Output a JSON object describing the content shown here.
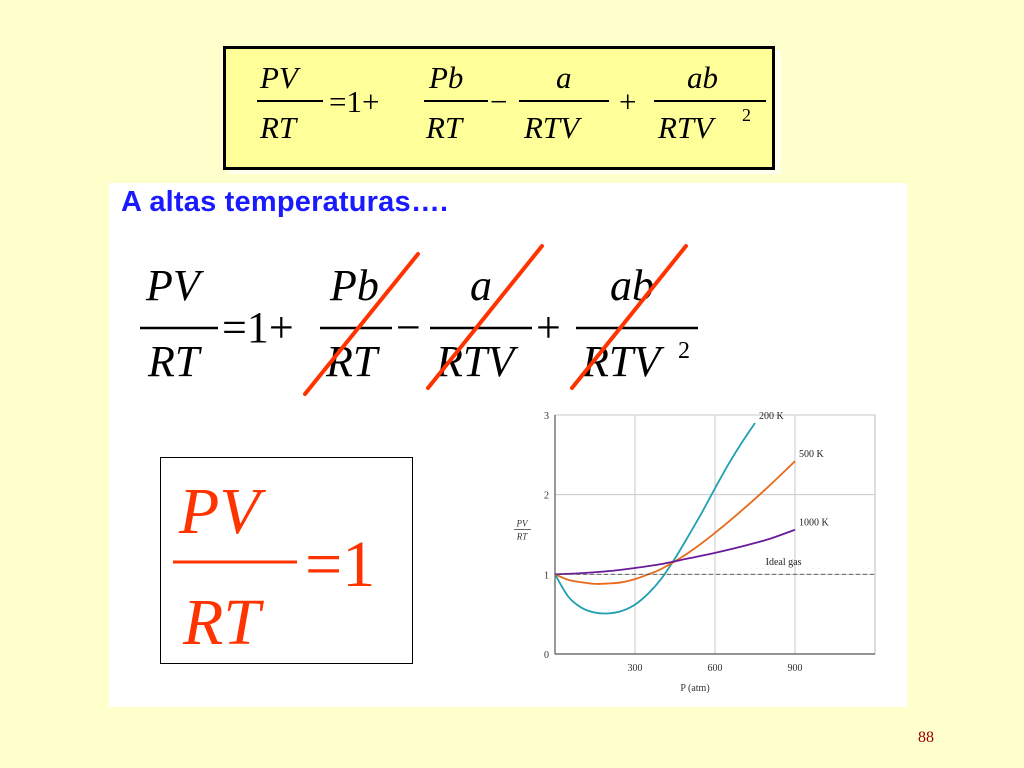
{
  "slide": {
    "heading": "A altas temperaturas….",
    "page_number": "88",
    "accent_color": "#ff3300",
    "heading_color": "#1a1aff"
  },
  "equation": {
    "lhs_num": "PV",
    "lhs_den": "RT",
    "equals_one": "=1+",
    "t1_num": "Pb",
    "t1_den": "RT",
    "minus": "−",
    "t2_num": "a",
    "t2_den": "RTV",
    "plus": "+",
    "t3_num": "ab",
    "t3_den": "RTV",
    "t3_exp": "2"
  },
  "result": {
    "num": "PV",
    "den": "RT",
    "rhs": "=1"
  },
  "chart_data": {
    "type": "line",
    "xlabel": "P (atm)",
    "ylabel_num": "PV",
    "ylabel_den": "RT",
    "xlim": [
      0,
      1200
    ],
    "ylim": [
      0,
      3
    ],
    "x_ticks": [
      "300",
      "600",
      "900"
    ],
    "x_tick_values": [
      300,
      600,
      900
    ],
    "y_ticks": [
      "0",
      "1",
      "2",
      "3"
    ],
    "y_tick_values": [
      0,
      1,
      2,
      3
    ],
    "grid": true,
    "series": [
      {
        "name": "200 K",
        "color": "#20a0b0",
        "x": [
          0,
          50,
          100,
          150,
          200,
          250,
          300,
          350,
          400,
          450,
          500,
          550,
          600,
          650,
          700,
          750
        ],
        "y": [
          1.0,
          0.72,
          0.58,
          0.52,
          0.51,
          0.54,
          0.62,
          0.76,
          0.95,
          1.2,
          1.48,
          1.77,
          2.08,
          2.38,
          2.65,
          2.9
        ]
      },
      {
        "name": "500 K",
        "color": "#e86a1a",
        "x": [
          0,
          50,
          100,
          150,
          200,
          250,
          300,
          350,
          400,
          500,
          600,
          700,
          800,
          900
        ],
        "y": [
          1.0,
          0.93,
          0.9,
          0.88,
          0.885,
          0.9,
          0.94,
          1.0,
          1.07,
          1.27,
          1.52,
          1.8,
          2.1,
          2.42
        ]
      },
      {
        "name": "1000 K",
        "color": "#6a1a9a",
        "x": [
          0,
          100,
          200,
          300,
          400,
          500,
          600,
          700,
          800,
          900
        ],
        "y": [
          1.0,
          1.015,
          1.04,
          1.08,
          1.13,
          1.2,
          1.27,
          1.35,
          1.44,
          1.56
        ]
      },
      {
        "name": "Ideal gas",
        "color": "#555555",
        "dashed": true,
        "x": [
          0,
          1200
        ],
        "y": [
          1.0,
          1.0
        ]
      }
    ]
  }
}
